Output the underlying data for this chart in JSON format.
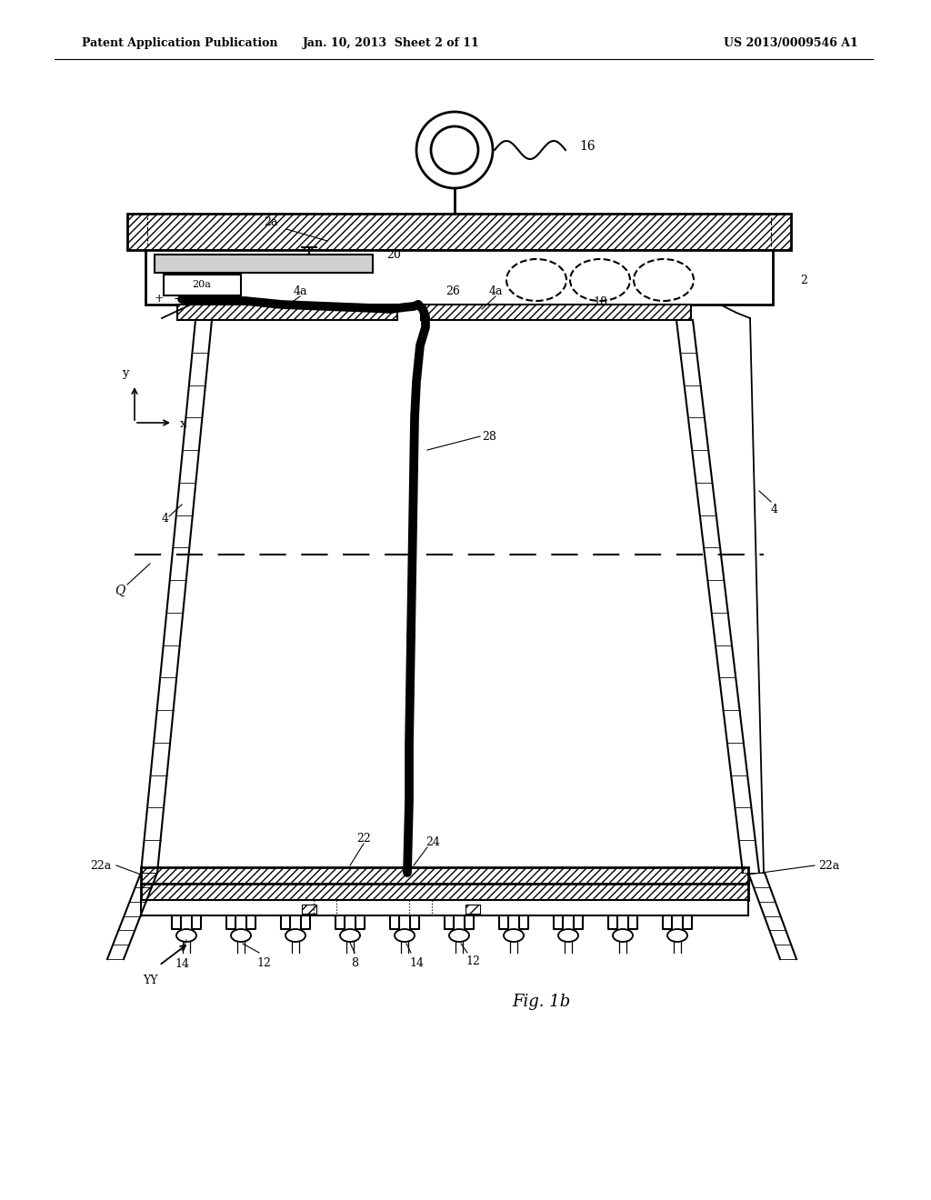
{
  "title_left": "Patent Application Publication",
  "title_mid": "Jan. 10, 2013  Sheet 2 of 11",
  "title_right": "US 2013/0009546 A1",
  "fig_label": "Fig. 1b",
  "bg_color": "#ffffff"
}
